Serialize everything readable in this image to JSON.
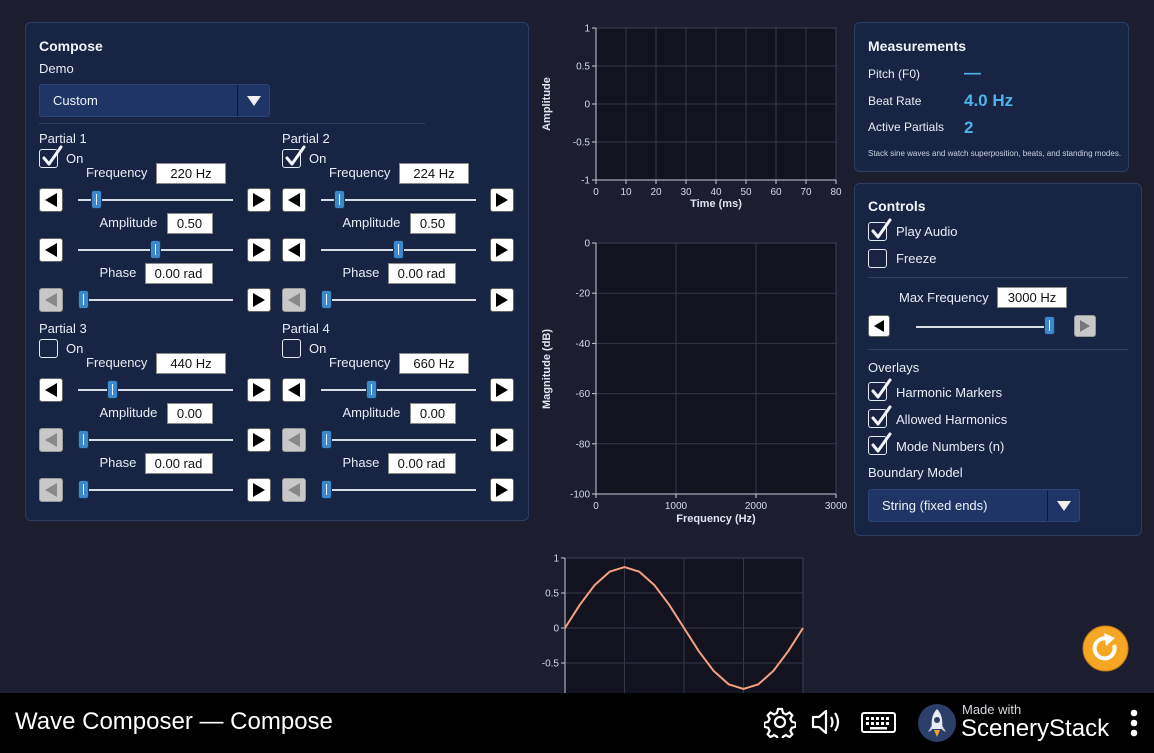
{
  "compose": {
    "title": "Compose",
    "demo_label": "Demo",
    "demo_value": "Custom",
    "partials": [
      {
        "name": "Partial 1",
        "on_label": "On",
        "on": true,
        "frequency": "220 Hz",
        "amplitude": "0.50",
        "phase": "0.00 rad",
        "freq_level": 0.09,
        "amp_level": 0.5,
        "phase_level": 0.0,
        "amp_left_enabled": true,
        "phase_left_enabled": false
      },
      {
        "name": "Partial 2",
        "on_label": "On",
        "on": true,
        "frequency": "224 Hz",
        "amplitude": "0.50",
        "phase": "0.00 rad",
        "freq_level": 0.09,
        "amp_level": 0.5,
        "phase_level": 0.0,
        "amp_left_enabled": true,
        "phase_left_enabled": false
      },
      {
        "name": "Partial 3",
        "on_label": "On",
        "on": false,
        "frequency": "440 Hz",
        "amplitude": "0.00",
        "phase": "0.00 rad",
        "freq_level": 0.2,
        "amp_level": 0.0,
        "phase_level": 0.0,
        "amp_left_enabled": false,
        "phase_left_enabled": false
      },
      {
        "name": "Partial 4",
        "on_label": "On",
        "on": false,
        "frequency": "660 Hz",
        "amplitude": "0.00",
        "phase": "0.00 rad",
        "freq_level": 0.31,
        "amp_level": 0.0,
        "phase_level": 0.0,
        "amp_left_enabled": false,
        "phase_left_enabled": false
      }
    ],
    "labels": {
      "frequency": "Frequency",
      "amplitude": "Amplitude",
      "phase": "Phase"
    }
  },
  "measurements": {
    "title": "Measurements",
    "pitch_label": "Pitch (F0)",
    "pitch_value": "—",
    "beat_label": "Beat Rate",
    "beat_value": "4.0 Hz",
    "partials_label": "Active Partials",
    "partials_value": "2",
    "note": "Stack sine waves and watch superposition, beats, and standing modes."
  },
  "controls": {
    "title": "Controls",
    "play_audio": {
      "label": "Play Audio",
      "checked": true
    },
    "freeze": {
      "label": "Freeze",
      "checked": false
    },
    "max_freq_label": "Max Frequency",
    "max_freq_value": "3000 Hz",
    "max_freq_level": 1.0,
    "overlays_label": "Overlays",
    "harmonic_markers": {
      "label": "Harmonic Markers",
      "checked": true
    },
    "allowed_harmonics": {
      "label": "Allowed Harmonics",
      "checked": true
    },
    "mode_numbers": {
      "label": "Mode Numbers (n)",
      "checked": true
    },
    "boundary_label": "Boundary Model",
    "boundary_value": "String (fixed ends)"
  },
  "chart_data": [
    {
      "type": "line",
      "title": "",
      "xlabel": "Time (ms)",
      "ylabel": "Amplitude",
      "xlim": [
        0,
        80
      ],
      "ylim": [
        -1,
        1
      ],
      "xticks": [
        "0",
        "10",
        "20",
        "30",
        "40",
        "50",
        "60",
        "70",
        "80"
      ],
      "yticks": [
        "1",
        "0.5",
        "0",
        "-0.5",
        "-1"
      ],
      "series": [],
      "grid": true
    },
    {
      "type": "line",
      "title": "",
      "xlabel": "Frequency (Hz)",
      "ylabel": "Magnitude (dB)",
      "xlim": [
        0,
        3000
      ],
      "ylim": [
        -100,
        0
      ],
      "xticks": [
        "0",
        "1000",
        "2000",
        "3000"
      ],
      "yticks": [
        "0",
        "-20",
        "-40",
        "-60",
        "-80",
        "-100"
      ],
      "series": [],
      "grid": true
    },
    {
      "type": "line",
      "title": "",
      "xlabel": "",
      "ylabel": "",
      "xlim": [
        0,
        1
      ],
      "ylim": [
        -1,
        1
      ],
      "yticks": [
        "1",
        "0.5",
        "0",
        "-0.5"
      ],
      "series": [
        {
          "color": "#f4a182",
          "x": [
            0,
            0.0625,
            0.125,
            0.1875,
            0.25,
            0.3125,
            0.375,
            0.4375,
            0.5,
            0.5625,
            0.625,
            0.6875,
            0.75,
            0.8125,
            0.875,
            0.9375,
            1.0
          ],
          "y": [
            0,
            0.333,
            0.615,
            0.804,
            0.87,
            0.804,
            0.615,
            0.333,
            0,
            -0.333,
            -0.615,
            -0.804,
            -0.87,
            -0.804,
            -0.615,
            -0.333,
            0
          ]
        }
      ],
      "grid": true
    }
  ],
  "footer": {
    "app_title": "Wave Composer — Compose",
    "made_with": "Made with",
    "brand": "SceneryStack"
  },
  "colors": {
    "accent": "#4cb4ea",
    "wave": "#f4a182",
    "panel": "#172443",
    "reset": "#f5a623"
  }
}
